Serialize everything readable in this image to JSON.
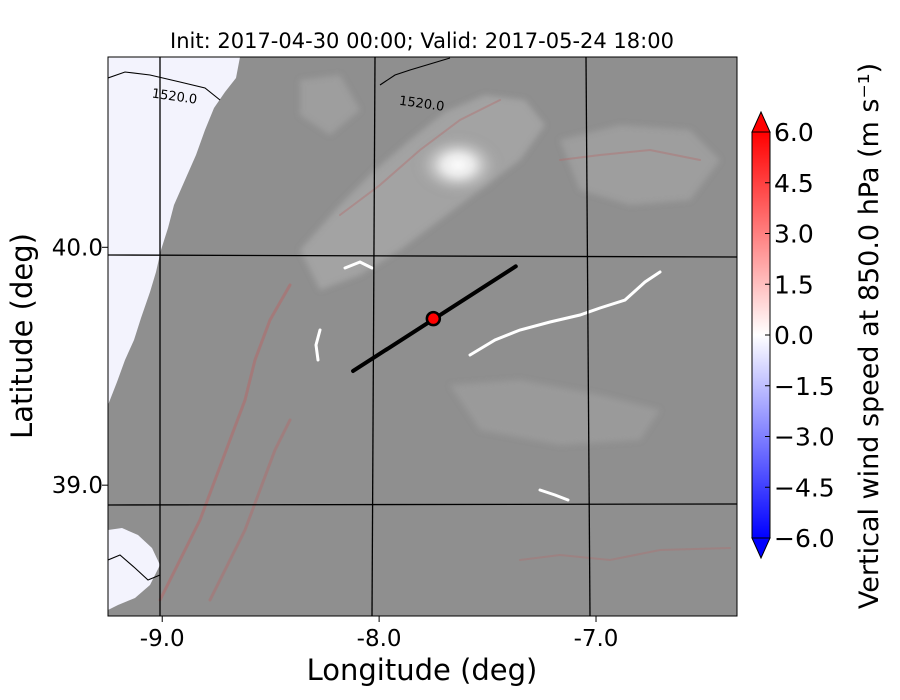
{
  "chart_data": {
    "type": "heatmap",
    "title": "Init: 2017-04-30 00:00; Valid: 2017-05-24 18:00",
    "xlabel": "Longitude (deg)",
    "ylabel": "Latitude (deg)",
    "xlim": [
      -9.25,
      -6.35
    ],
    "ylim": [
      38.45,
      40.8
    ],
    "x_ticks": [
      -9.0,
      -8.0,
      -7.0
    ],
    "x_tick_labels": [
      "-9.0",
      "-8.0",
      "-7.0"
    ],
    "y_ticks": [
      39.0,
      40.0
    ],
    "y_tick_labels": [
      "39.0",
      "40.0"
    ],
    "grid": true,
    "contour_labels": [
      {
        "text": "1520.0",
        "lon": -9.05,
        "lat": 40.63
      },
      {
        "text": "1520.0",
        "lon": -7.91,
        "lat": 40.6
      }
    ],
    "cross_section_line": {
      "start": [
        -8.12,
        39.48
      ],
      "end": [
        -7.37,
        39.92
      ]
    },
    "marker": {
      "lon": -7.75,
      "lat": 39.7,
      "color": "#ff0000"
    },
    "colorbar": {
      "label": "Vertical wind speed at 850.0 hPa (m s⁻¹)",
      "min": -6.0,
      "max": 6.0,
      "ticks": [
        6.0,
        4.5,
        3.0,
        1.5,
        0.0,
        -1.5,
        -3.0,
        -4.5,
        -6.0
      ],
      "tick_labels": [
        "6.0",
        "4.5",
        "3.0",
        "1.5",
        "0.0",
        "−1.5",
        "−3.0",
        "−4.5",
        "−6.0"
      ],
      "colors": {
        "max": "#ff0000",
        "mid": "#ffffff",
        "min": "#0000ff"
      }
    }
  }
}
